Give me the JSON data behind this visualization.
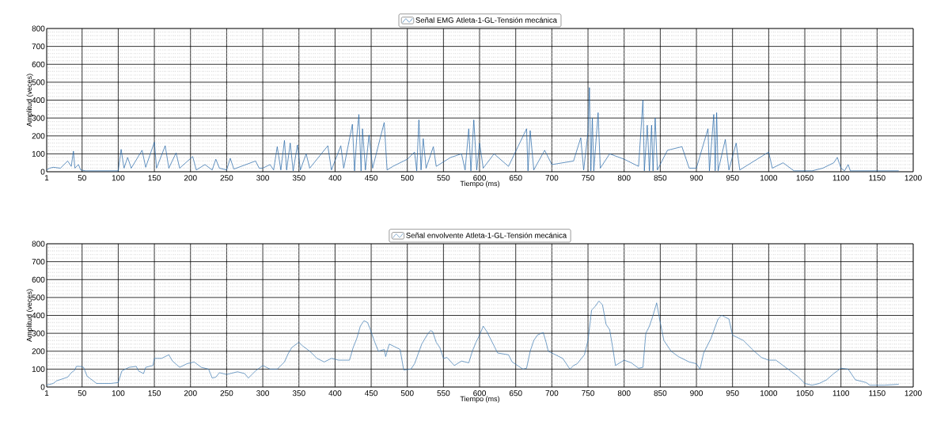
{
  "chart_data": [
    {
      "type": "line",
      "xlabel": "Tiempo (ms)",
      "ylabel": "Amplitud (veces)",
      "xlim": [
        1,
        1200
      ],
      "ylim": [
        0,
        800
      ],
      "xticks": [
        1,
        50,
        100,
        150,
        200,
        250,
        300,
        350,
        400,
        450,
        500,
        550,
        600,
        650,
        700,
        750,
        800,
        850,
        900,
        950,
        1000,
        1050,
        1100,
        1150,
        1200
      ],
      "yticks": [
        0,
        100,
        200,
        300,
        400,
        500,
        600,
        700,
        800
      ],
      "grid": true,
      "legend": "top",
      "marker": "none",
      "line_style": "solid",
      "series": [
        {
          "name": "Señal EMG Atleta-1-GL-Tensión mecánica",
          "color": "#1f63a5",
          "x": [
            1,
            5,
            10,
            20,
            30,
            35,
            38,
            40,
            45,
            48,
            55,
            70,
            90,
            100,
            104,
            108,
            113,
            118,
            133,
            138,
            150,
            153,
            165,
            170,
            180,
            185,
            203,
            208,
            220,
            230,
            235,
            240,
            250,
            255,
            260,
            270,
            290,
            295,
            300,
            310,
            315,
            320,
            325,
            330,
            333,
            338,
            342,
            348,
            352,
            360,
            365,
            390,
            395,
            408,
            412,
            424,
            427,
            430,
            433,
            436,
            438,
            442,
            447,
            452,
            468,
            472,
            480,
            500,
            510,
            513,
            516,
            519,
            522,
            526,
            536,
            540,
            560,
            575,
            580,
            585,
            588,
            592,
            596,
            600,
            605,
            620,
            640,
            665,
            667,
            670,
            675,
            690,
            700,
            730,
            740,
            744,
            750,
            752,
            754,
            756,
            758,
            764,
            767,
            780,
            800,
            820,
            826,
            828,
            832,
            835,
            838,
            840,
            843,
            846,
            860,
            880,
            890,
            900,
            916,
            918,
            924,
            926,
            928,
            930,
            940,
            945,
            955,
            960,
            1000,
            1005,
            1020,
            1035,
            1060,
            1075,
            1090,
            1095,
            1100,
            1105,
            1110,
            1113,
            1150,
            1180
          ],
          "values": [
            10,
            20,
            25,
            20,
            60,
            30,
            115,
            20,
            40,
            10,
            5,
            5,
            5,
            5,
            125,
            20,
            80,
            20,
            120,
            25,
            165,
            20,
            145,
            20,
            105,
            20,
            85,
            10,
            40,
            10,
            70,
            20,
            10,
            75,
            15,
            30,
            60,
            20,
            20,
            40,
            10,
            140,
            10,
            175,
            10,
            160,
            5,
            150,
            10,
            100,
            20,
            145,
            10,
            145,
            20,
            265,
            5,
            190,
            320,
            5,
            240,
            10,
            205,
            20,
            275,
            10,
            30,
            70,
            110,
            5,
            290,
            10,
            185,
            20,
            140,
            30,
            80,
            100,
            10,
            240,
            5,
            290,
            10,
            160,
            20,
            100,
            30,
            240,
            5,
            230,
            10,
            120,
            40,
            60,
            190,
            10,
            220,
            470,
            5,
            300,
            5,
            330,
            20,
            100,
            70,
            30,
            400,
            5,
            260,
            5,
            260,
            5,
            300,
            10,
            120,
            140,
            20,
            20,
            240,
            5,
            320,
            5,
            330,
            5,
            180,
            10,
            160,
            10,
            110,
            20,
            50,
            5,
            5,
            20,
            50,
            80,
            20,
            5,
            40,
            5,
            5,
            5
          ]
        }
      ]
    },
    {
      "type": "line",
      "xlabel": "Tiempo (ms)",
      "ylabel": "Amplitud (veces)",
      "xlim": [
        1,
        1200
      ],
      "ylim": [
        0,
        800
      ],
      "xticks": [
        1,
        50,
        100,
        150,
        200,
        250,
        300,
        350,
        400,
        450,
        500,
        550,
        600,
        650,
        700,
        750,
        800,
        850,
        900,
        950,
        1000,
        1050,
        1100,
        1150,
        1200
      ],
      "yticks": [
        0,
        100,
        200,
        300,
        400,
        500,
        600,
        700,
        800
      ],
      "grid": true,
      "legend": "top",
      "marker": "none",
      "line_style": "solid",
      "series": [
        {
          "name": "Señal envolvente Atleta-1-GL-Tensión mecánica",
          "color": "#3a78b0",
          "x": [
            1,
            10,
            15,
            30,
            35,
            40,
            42,
            48,
            52,
            57,
            62,
            70,
            90,
            100,
            105,
            115,
            125,
            128,
            135,
            138,
            148,
            150,
            160,
            170,
            175,
            185,
            195,
            205,
            215,
            225,
            230,
            235,
            240,
            250,
            265,
            275,
            280,
            290,
            300,
            310,
            320,
            325,
            330,
            335,
            340,
            350,
            355,
            365,
            375,
            385,
            395,
            405,
            420,
            425,
            430,
            435,
            440,
            445,
            448,
            455,
            460,
            468,
            470,
            475,
            485,
            490,
            495,
            505,
            510,
            520,
            528,
            532,
            535,
            540,
            545,
            550,
            555,
            565,
            575,
            585,
            590,
            595,
            600,
            605,
            610,
            620,
            625,
            640,
            645,
            660,
            665,
            670,
            675,
            680,
            688,
            692,
            695,
            705,
            715,
            725,
            730,
            735,
            745,
            750,
            755,
            760,
            765,
            770,
            775,
            780,
            785,
            788,
            800,
            810,
            820,
            826,
            830,
            835,
            840,
            845,
            850,
            855,
            865,
            875,
            890,
            900,
            905,
            910,
            920,
            930,
            935,
            945,
            950,
            955,
            965,
            980,
            990,
            1000,
            1010,
            1020,
            1030,
            1040,
            1050,
            1060,
            1070,
            1080,
            1090,
            1100,
            1110,
            1120,
            1135,
            1140,
            1160,
            1180
          ],
          "values": [
            10,
            20,
            35,
            55,
            80,
            95,
            115,
            115,
            110,
            60,
            45,
            20,
            20,
            25,
            90,
            110,
            115,
            90,
            75,
            110,
            120,
            160,
            160,
            180,
            145,
            110,
            130,
            140,
            110,
            100,
            50,
            55,
            80,
            70,
            85,
            75,
            50,
            90,
            120,
            100,
            100,
            120,
            140,
            185,
            220,
            250,
            230,
            200,
            160,
            140,
            160,
            150,
            150,
            220,
            270,
            340,
            370,
            360,
            330,
            250,
            200,
            210,
            170,
            240,
            220,
            210,
            95,
            100,
            130,
            240,
            295,
            315,
            310,
            250,
            220,
            160,
            165,
            120,
            145,
            135,
            200,
            250,
            290,
            340,
            310,
            230,
            190,
            180,
            140,
            100,
            105,
            200,
            260,
            290,
            305,
            250,
            200,
            180,
            160,
            100,
            120,
            130,
            180,
            260,
            430,
            450,
            480,
            460,
            350,
            320,
            200,
            120,
            150,
            135,
            105,
            110,
            300,
            340,
            400,
            470,
            360,
            260,
            200,
            170,
            140,
            130,
            100,
            190,
            270,
            380,
            400,
            380,
            290,
            280,
            260,
            200,
            165,
            150,
            150,
            120,
            90,
            60,
            20,
            10,
            20,
            40,
            75,
            105,
            100,
            40,
            25,
            10,
            10,
            15
          ]
        }
      ]
    }
  ]
}
